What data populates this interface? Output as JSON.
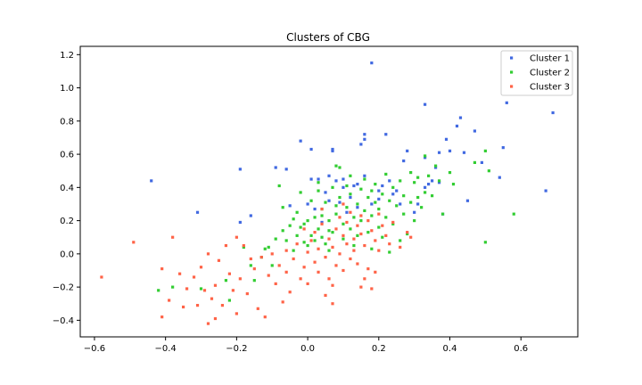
{
  "chart_data": {
    "type": "scatter",
    "title": "Clusters of CBG",
    "xlabel": "",
    "ylabel": "",
    "xlim": [
      -0.64,
      0.76
    ],
    "ylim": [
      -0.5,
      1.25
    ],
    "xticks": [
      -0.6,
      -0.4,
      -0.2,
      0.0,
      0.2,
      0.4,
      0.6
    ],
    "xtick_labels": [
      "−0.6",
      "−0.4",
      "−0.2",
      "0.0",
      "0.2",
      "0.4",
      "0.6"
    ],
    "yticks": [
      -0.4,
      -0.2,
      0.0,
      0.2,
      0.4,
      0.6,
      0.8,
      1.0,
      1.2
    ],
    "ytick_labels": [
      "−0.4",
      "−0.2",
      "0.0",
      "0.2",
      "0.4",
      "0.6",
      "0.8",
      "1.0",
      "1.2"
    ],
    "grid": false,
    "legend_position": "top-right",
    "series": [
      {
        "name": "Cluster 1",
        "color": "#4169e1",
        "points": [
          [
            -0.44,
            0.44
          ],
          [
            -0.31,
            0.25
          ],
          [
            -0.19,
            0.51
          ],
          [
            -0.19,
            0.19
          ],
          [
            -0.16,
            0.23
          ],
          [
            -0.09,
            0.52
          ],
          [
            -0.06,
            0.51
          ],
          [
            -0.02,
            0.68
          ],
          [
            0.01,
            0.45
          ],
          [
            0.01,
            0.63
          ],
          [
            0.03,
            0.45
          ],
          [
            0.04,
            0.19
          ],
          [
            0.06,
            0.47
          ],
          [
            0.07,
            0.62
          ],
          [
            0.07,
            0.63
          ],
          [
            0.08,
            0.44
          ],
          [
            0.1,
            0.45
          ],
          [
            0.12,
            0.34
          ],
          [
            0.13,
            0.41
          ],
          [
            0.14,
            0.42
          ],
          [
            0.15,
            0.66
          ],
          [
            0.16,
            0.47
          ],
          [
            0.16,
            0.72
          ],
          [
            0.16,
            0.69
          ],
          [
            0.18,
            1.15
          ],
          [
            0.18,
            0.3
          ],
          [
            0.2,
            0.38
          ],
          [
            0.21,
            0.41
          ],
          [
            0.22,
            0.72
          ],
          [
            0.24,
            0.36
          ],
          [
            0.25,
            0.38
          ],
          [
            0.26,
            0.3
          ],
          [
            0.27,
            0.56
          ],
          [
            0.28,
            0.62
          ],
          [
            0.3,
            0.25
          ],
          [
            0.31,
            0.3
          ],
          [
            0.33,
            0.9
          ],
          [
            0.33,
            0.58
          ],
          [
            0.33,
            0.4
          ],
          [
            0.34,
            0.42
          ],
          [
            0.35,
            0.44
          ],
          [
            0.36,
            0.52
          ],
          [
            0.37,
            0.43
          ],
          [
            0.37,
            0.61
          ],
          [
            0.38,
            0.24
          ],
          [
            0.39,
            0.69
          ],
          [
            0.4,
            0.62
          ],
          [
            0.42,
            0.77
          ],
          [
            0.43,
            0.82
          ],
          [
            0.44,
            0.61
          ],
          [
            0.45,
            0.32
          ],
          [
            0.47,
            0.74
          ],
          [
            0.49,
            0.55
          ],
          [
            0.54,
            0.46
          ],
          [
            0.55,
            0.64
          ],
          [
            0.56,
            0.91
          ],
          [
            0.67,
            0.38
          ],
          [
            0.69,
            0.85
          ],
          [
            0.05,
            0.37
          ],
          [
            0.09,
            0.31
          ],
          [
            0.11,
            0.25
          ],
          [
            -0.05,
            0.29
          ],
          [
            0.02,
            0.27
          ],
          [
            0.0,
            0.3
          ],
          [
            0.06,
            0.32
          ],
          [
            0.1,
            0.4
          ],
          [
            0.14,
            0.28
          ],
          [
            0.2,
            0.33
          ],
          [
            0.23,
            0.44
          ]
        ]
      },
      {
        "name": "Cluster 2",
        "color": "#32cd32",
        "points": [
          [
            -0.42,
            -0.22
          ],
          [
            -0.38,
            -0.2
          ],
          [
            -0.3,
            -0.21
          ],
          [
            -0.23,
            -0.16
          ],
          [
            -0.22,
            -0.28
          ],
          [
            -0.18,
            0.04
          ],
          [
            -0.16,
            -0.07
          ],
          [
            -0.15,
            -0.16
          ],
          [
            -0.13,
            -0.02
          ],
          [
            -0.12,
            0.03
          ],
          [
            -0.11,
            0.04
          ],
          [
            -0.1,
            -0.07
          ],
          [
            -0.09,
            0.09
          ],
          [
            -0.08,
            0.41
          ],
          [
            -0.07,
            0.14
          ],
          [
            -0.07,
            0.28
          ],
          [
            -0.06,
            0.08
          ],
          [
            -0.05,
            0.17
          ],
          [
            -0.04,
            0.21
          ],
          [
            -0.04,
            0.02
          ],
          [
            -0.03,
            0.25
          ],
          [
            -0.03,
            0.11
          ],
          [
            -0.02,
            0.16
          ],
          [
            -0.01,
            0.07
          ],
          [
            0.0,
            0.05
          ],
          [
            0.0,
            0.2
          ],
          [
            0.01,
            0.11
          ],
          [
            0.01,
            0.32
          ],
          [
            0.02,
            0.08
          ],
          [
            0.02,
            0.22
          ],
          [
            0.03,
            0.38
          ],
          [
            0.03,
            0.15
          ],
          [
            0.04,
            0.27
          ],
          [
            0.04,
            0.1
          ],
          [
            0.05,
            0.06
          ],
          [
            0.05,
            0.31
          ],
          [
            0.06,
            0.2
          ],
          [
            0.06,
            0.02
          ],
          [
            0.07,
            0.4
          ],
          [
            0.07,
            0.13
          ],
          [
            0.08,
            0.53
          ],
          [
            0.08,
            0.24
          ],
          [
            0.09,
            0.52
          ],
          [
            0.09,
            0.34
          ],
          [
            0.1,
            0.18
          ],
          [
            0.1,
            0.09
          ],
          [
            0.11,
            0.28
          ],
          [
            0.11,
            0.41
          ],
          [
            0.12,
            0.15
          ],
          [
            0.12,
            0.36
          ],
          [
            0.13,
            0.22
          ],
          [
            0.13,
            0.05
          ],
          [
            0.14,
            0.3
          ],
          [
            0.14,
            0.11
          ],
          [
            0.15,
            0.39
          ],
          [
            0.15,
            0.2
          ],
          [
            0.16,
            0.26
          ],
          [
            0.16,
            0.45
          ],
          [
            0.17,
            0.13
          ],
          [
            0.17,
            0.34
          ],
          [
            0.18,
            0.23
          ],
          [
            0.18,
            0.03
          ],
          [
            0.19,
            0.31
          ],
          [
            0.19,
            0.42
          ],
          [
            0.2,
            0.16
          ],
          [
            0.2,
            0.27
          ],
          [
            0.21,
            0.36
          ],
          [
            0.21,
            0.1
          ],
          [
            0.22,
            0.48
          ],
          [
            0.22,
            0.22
          ],
          [
            0.23,
            0.32
          ],
          [
            0.23,
            0.01
          ],
          [
            0.24,
            0.4
          ],
          [
            0.24,
            0.18
          ],
          [
            0.25,
            0.29
          ],
          [
            0.26,
            0.44
          ],
          [
            0.26,
            0.08
          ],
          [
            0.27,
            0.35
          ],
          [
            0.27,
            0.24
          ],
          [
            0.28,
            0.12
          ],
          [
            0.29,
            0.49
          ],
          [
            0.29,
            0.31
          ],
          [
            0.3,
            0.43
          ],
          [
            0.3,
            0.2
          ],
          [
            0.31,
            0.46
          ],
          [
            0.31,
            0.34
          ],
          [
            0.32,
            0.28
          ],
          [
            0.33,
            0.59
          ],
          [
            0.33,
            0.37
          ],
          [
            0.34,
            0.47
          ],
          [
            0.35,
            0.35
          ],
          [
            0.36,
            0.53
          ],
          [
            0.37,
            0.44
          ],
          [
            0.38,
            0.24
          ],
          [
            0.4,
            0.49
          ],
          [
            0.41,
            0.42
          ],
          [
            0.47,
            0.55
          ],
          [
            0.5,
            0.62
          ],
          [
            0.51,
            0.5
          ],
          [
            0.58,
            0.24
          ],
          [
            0.5,
            0.07
          ],
          [
            -0.02,
            0.37
          ],
          [
            0.03,
            0.43
          ],
          [
            0.06,
            0.14
          ],
          [
            0.08,
            0.29
          ],
          [
            0.12,
            0.47
          ],
          [
            0.18,
            0.38
          ],
          [
            -0.01,
            0.18
          ],
          [
            0.04,
            0.23
          ]
        ]
      },
      {
        "name": "Cluster 3",
        "color": "#ff6347",
        "points": [
          [
            -0.58,
            -0.14
          ],
          [
            -0.49,
            0.07
          ],
          [
            -0.41,
            -0.09
          ],
          [
            -0.41,
            -0.38
          ],
          [
            -0.39,
            -0.28
          ],
          [
            -0.38,
            0.1
          ],
          [
            -0.36,
            -0.12
          ],
          [
            -0.35,
            -0.32
          ],
          [
            -0.34,
            -0.21
          ],
          [
            -0.32,
            -0.14
          ],
          [
            -0.31,
            -0.31
          ],
          [
            -0.3,
            -0.08
          ],
          [
            -0.29,
            -0.22
          ],
          [
            -0.28,
            -0.42
          ],
          [
            -0.28,
            0.0
          ],
          [
            -0.27,
            -0.27
          ],
          [
            -0.26,
            -0.19
          ],
          [
            -0.26,
            -0.39
          ],
          [
            -0.25,
            -0.04
          ],
          [
            -0.24,
            -0.31
          ],
          [
            -0.23,
            0.05
          ],
          [
            -0.22,
            -0.12
          ],
          [
            -0.21,
            -0.22
          ],
          [
            -0.2,
            0.1
          ],
          [
            -0.2,
            -0.36
          ],
          [
            -0.19,
            -0.15
          ],
          [
            -0.18,
            0.05
          ],
          [
            -0.17,
            -0.24
          ],
          [
            -0.16,
            -0.03
          ],
          [
            -0.15,
            -0.09
          ],
          [
            -0.14,
            -0.33
          ],
          [
            -0.13,
            -0.02
          ],
          [
            -0.12,
            -0.38
          ],
          [
            -0.11,
            -0.13
          ],
          [
            -0.1,
            0.0
          ],
          [
            -0.09,
            -0.18
          ],
          [
            -0.08,
            -0.07
          ],
          [
            -0.07,
            -0.29
          ],
          [
            -0.06,
            0.02
          ],
          [
            -0.06,
            -0.11
          ],
          [
            -0.05,
            -0.23
          ],
          [
            -0.04,
            -0.03
          ],
          [
            -0.03,
            0.06
          ],
          [
            -0.02,
            -0.15
          ],
          [
            -0.01,
            -0.08
          ],
          [
            0.0,
            0.01
          ],
          [
            0.0,
            -0.18
          ],
          [
            0.01,
            0.08
          ],
          [
            0.02,
            -0.05
          ],
          [
            0.02,
            0.13
          ],
          [
            0.03,
            -0.11
          ],
          [
            0.03,
            0.03
          ],
          [
            0.04,
            0.18
          ],
          [
            0.05,
            -0.02
          ],
          [
            0.05,
            -0.25
          ],
          [
            0.06,
            0.09
          ],
          [
            0.06,
            -0.15
          ],
          [
            0.07,
            0.04
          ],
          [
            0.07,
            -0.3
          ],
          [
            0.08,
            0.15
          ],
          [
            0.08,
            -0.07
          ],
          [
            0.09,
            0.22
          ],
          [
            0.09,
            0.0
          ],
          [
            0.1,
            0.11
          ],
          [
            0.1,
            -0.1
          ],
          [
            0.11,
            0.06
          ],
          [
            0.11,
            0.19
          ],
          [
            0.12,
            -0.03
          ],
          [
            0.12,
            0.25
          ],
          [
            0.13,
            0.09
          ],
          [
            0.13,
            0.02
          ],
          [
            0.14,
            0.17
          ],
          [
            0.14,
            -0.06
          ],
          [
            0.15,
            0.23
          ],
          [
            0.15,
            0.12
          ],
          [
            0.16,
            -0.15
          ],
          [
            0.16,
            0.05
          ],
          [
            0.17,
            0.2
          ],
          [
            0.17,
            -0.09
          ],
          [
            0.18,
            0.14
          ],
          [
            0.18,
            -0.21
          ],
          [
            0.19,
            0.08
          ],
          [
            0.2,
            0.24
          ],
          [
            0.2,
            0.02
          ],
          [
            0.21,
            0.17
          ],
          [
            0.22,
            0.11
          ],
          [
            0.23,
            0.06
          ],
          [
            0.24,
            0.19
          ],
          [
            0.26,
            0.04
          ],
          [
            0.28,
            0.13
          ],
          [
            0.29,
            0.1
          ],
          [
            -0.01,
            0.15
          ],
          [
            0.04,
            0.27
          ],
          [
            0.1,
            0.3
          ],
          [
            0.15,
            -0.2
          ],
          [
            0.19,
            -0.11
          ],
          [
            0.07,
            -0.19
          ]
        ]
      }
    ]
  }
}
